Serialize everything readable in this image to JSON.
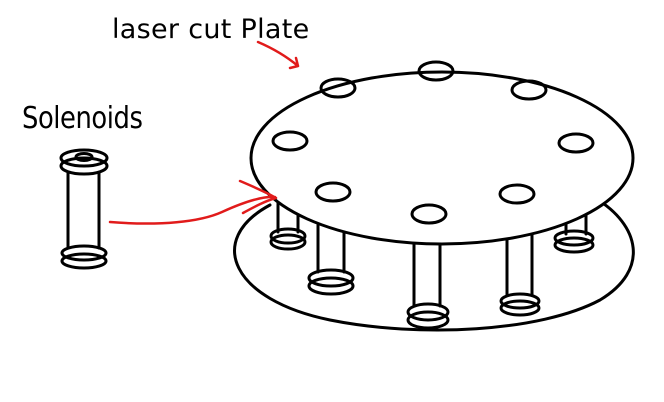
{
  "labels": {
    "plate": "laser cut Plate",
    "solenoids": "Solenoids"
  },
  "colors": {
    "ink": "#000000",
    "arrow": "#e11b1b",
    "background": "#ffffff"
  }
}
